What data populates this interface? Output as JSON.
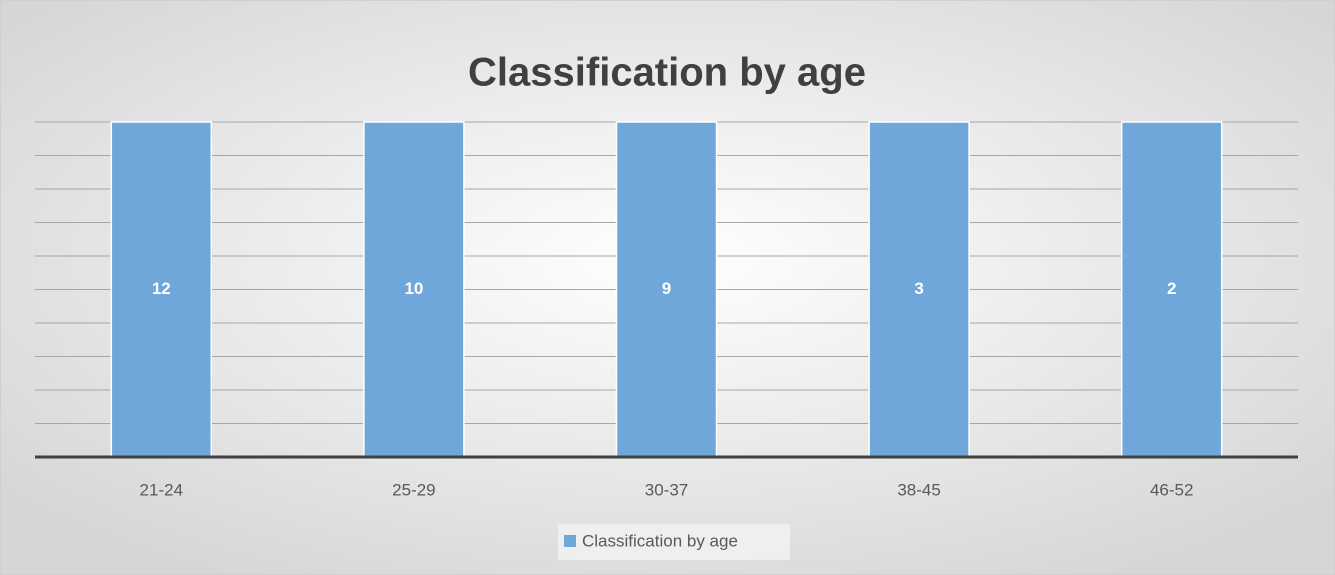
{
  "chart_data": {
    "type": "bar",
    "stacked": "percent",
    "title": "Classification by age",
    "categories": [
      "21-24",
      "25-29",
      "30-37",
      "38-45",
      "46-52"
    ],
    "series": [
      {
        "name": "Classification by age",
        "color": "#70a7db",
        "values": [
          12,
          10,
          9,
          3,
          2
        ]
      }
    ],
    "ylim": [
      0,
      100
    ],
    "yticks": [
      0,
      10,
      20,
      30,
      40,
      50,
      60,
      70,
      80,
      90,
      100
    ],
    "grid": true,
    "legend": "bottom"
  }
}
